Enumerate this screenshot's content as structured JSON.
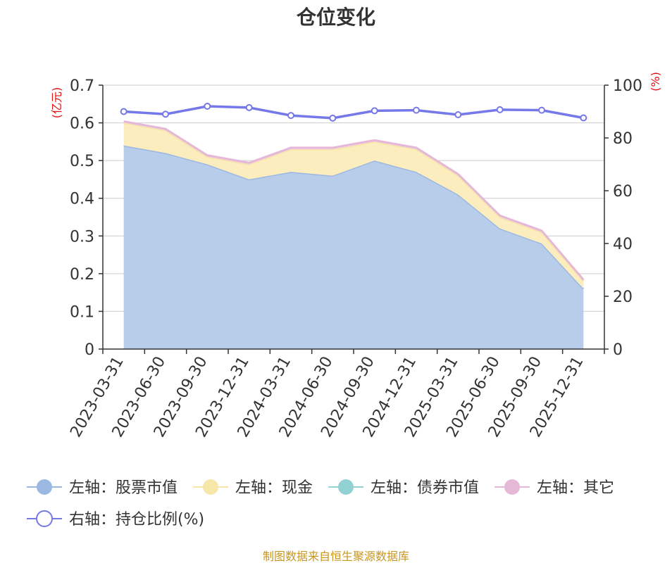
{
  "chart_data": {
    "type": "area",
    "title": "仓位变化",
    "left_axis_unit": "(亿元)",
    "right_axis_unit": "(%)",
    "categories": [
      "2023-03-31",
      "2023-06-30",
      "2023-09-30",
      "2023-12-31",
      "2024-03-31",
      "2024-06-30",
      "2024-09-30",
      "2024-12-31",
      "2025-03-31",
      "2025-06-30",
      "2025-09-30",
      "2025-12-31"
    ],
    "left_ylim": [
      0,
      0.7
    ],
    "left_ticks": [
      "0",
      "0.1",
      "0.2",
      "0.3",
      "0.4",
      "0.5",
      "0.6",
      "0.7"
    ],
    "right_ylim": [
      0,
      100
    ],
    "right_ticks": [
      "0",
      "20",
      "40",
      "60",
      "80",
      "100"
    ],
    "series": [
      {
        "name": "左轴：股票市值",
        "axis": "left",
        "stacked": true,
        "color": "#9bb8e3",
        "fill": "#b8cdea",
        "values": [
          0.54,
          0.52,
          0.49,
          0.45,
          0.47,
          0.46,
          0.5,
          0.47,
          0.41,
          0.32,
          0.28,
          0.16
        ]
      },
      {
        "name": "左轴：现金",
        "axis": "left",
        "stacked": true,
        "color": "#f6e6a8",
        "fill": "#fbedbd",
        "values": [
          0.06,
          0.06,
          0.02,
          0.04,
          0.06,
          0.07,
          0.05,
          0.06,
          0.05,
          0.03,
          0.03,
          0.02
        ]
      },
      {
        "name": "左轴：债券市值",
        "axis": "left",
        "stacked": true,
        "color": "#93d2d2",
        "fill": "#b5e0e0",
        "values": [
          0,
          0,
          0,
          0,
          0,
          0,
          0,
          0,
          0,
          0,
          0,
          0
        ]
      },
      {
        "name": "左轴：其它",
        "axis": "left",
        "stacked": true,
        "color": "#e6b8d8",
        "fill": "#f0cfe5",
        "values": [
          0.004,
          0.004,
          0.004,
          0.004,
          0.004,
          0.004,
          0.004,
          0.004,
          0.004,
          0.004,
          0.004,
          0.004
        ]
      },
      {
        "name": "右轴：持仓比例(%)",
        "axis": "right",
        "stacked": false,
        "color": "#7478e8",
        "marker": "circle",
        "values": [
          90,
          89,
          92,
          91.5,
          88.5,
          87.5,
          90.3,
          90.5,
          88.8,
          90.7,
          90.5,
          87.6
        ]
      }
    ],
    "grid": true,
    "legend_position": "bottom"
  },
  "source_text": "制图数据来自恒生聚源数据库"
}
